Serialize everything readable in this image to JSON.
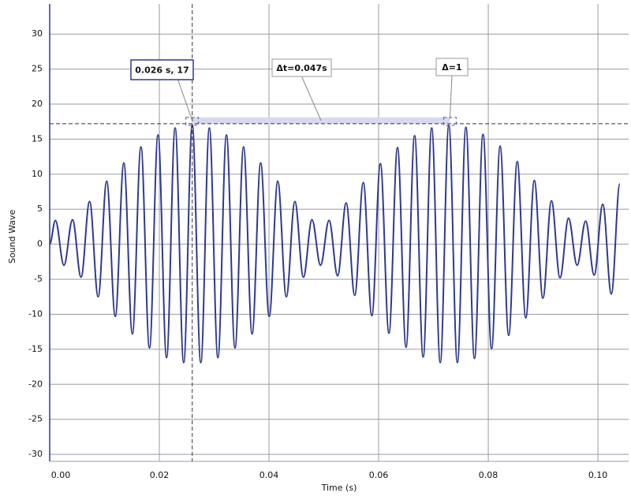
{
  "chart_data": {
    "type": "line",
    "x_label": "Time (s)",
    "y_label": "Sound Wave",
    "x": [
      0,
      0.00104,
      0.0026,
      0.00416,
      0.00572,
      0.00728,
      0.00884,
      0.0104,
      0.01196,
      0.01352,
      0.01508,
      0.01664,
      0.0182,
      0.01976,
      0.02132,
      0.02288,
      0.02444,
      0.026,
      0.02756,
      0.02912,
      0.03068,
      0.03224,
      0.0338,
      0.03536,
      0.03692,
      0.03848,
      0.04004,
      0.0416,
      0.04316,
      0.04472,
      0.04628,
      0.04784,
      0.0494,
      0.05096,
      0.05252,
      0.05408,
      0.05564,
      0.0572,
      0.05876,
      0.06032,
      0.06188,
      0.06344,
      0.065,
      0.06656,
      0.06812,
      0.06968,
      0.07124,
      0.0728,
      0.07436,
      0.07592,
      0.07748,
      0.07904,
      0.0806,
      0.08216,
      0.08372,
      0.08528,
      0.08684,
      0.0884,
      0.08996,
      0.09152,
      0.09308,
      0.09464,
      0.0962,
      0.09776,
      0.09932,
      0.10088,
      0.10244,
      0.104
    ],
    "series": [
      {
        "name": "Sound Wave",
        "color": "#2e3a8c",
        "values": [
          0,
          3.4,
          -3.0,
          3.5,
          -4.7,
          6.1,
          -7.5,
          9.0,
          -10.3,
          11.6,
          -12.8,
          13.9,
          -14.8,
          15.6,
          -16.2,
          16.6,
          -16.9,
          17.0,
          -16.9,
          16.6,
          -16.2,
          15.6,
          -14.8,
          13.9,
          -12.8,
          11.6,
          -10.3,
          9.0,
          -7.5,
          6.1,
          -4.7,
          3.5,
          -3.0,
          3.4,
          -4.5,
          5.9,
          -7.3,
          8.8,
          -10.2,
          11.5,
          -12.7,
          13.8,
          -14.7,
          15.5,
          -16.1,
          16.6,
          -16.9,
          17.0,
          -16.9,
          16.7,
          -16.3,
          15.7,
          -14.9,
          14.0,
          -13.0,
          11.8,
          -10.5,
          9.1,
          -7.7,
          6.2,
          -4.8,
          3.7,
          -3.0,
          3.3,
          -4.4,
          5.7,
          -7.1,
          8.6
        ]
      }
    ],
    "xlim": [
      0,
      0.1056
    ],
    "ylim": [
      -31,
      34.3
    ],
    "xticks": [
      {
        "value": 0,
        "label": "0.00"
      },
      {
        "value": 0.02,
        "label": "0.02"
      },
      {
        "value": 0.04,
        "label": "0.04"
      },
      {
        "value": 0.06,
        "label": "0.06"
      },
      {
        "value": 0.08,
        "label": "0.08"
      },
      {
        "value": 0.1,
        "label": "0.10"
      }
    ],
    "yticks": [
      -30,
      -25,
      -20,
      -15,
      -10,
      -5,
      0,
      5,
      10,
      15,
      20,
      25,
      30
    ],
    "grid": true,
    "cursor_x": 0.026,
    "cursor_y": 17.2,
    "measure_end_x": 0.073,
    "annotations": [
      {
        "text": "0.026 s, 17"
      },
      {
        "text": "Δt=0.047s"
      },
      {
        "text": "Δ=1"
      }
    ]
  }
}
